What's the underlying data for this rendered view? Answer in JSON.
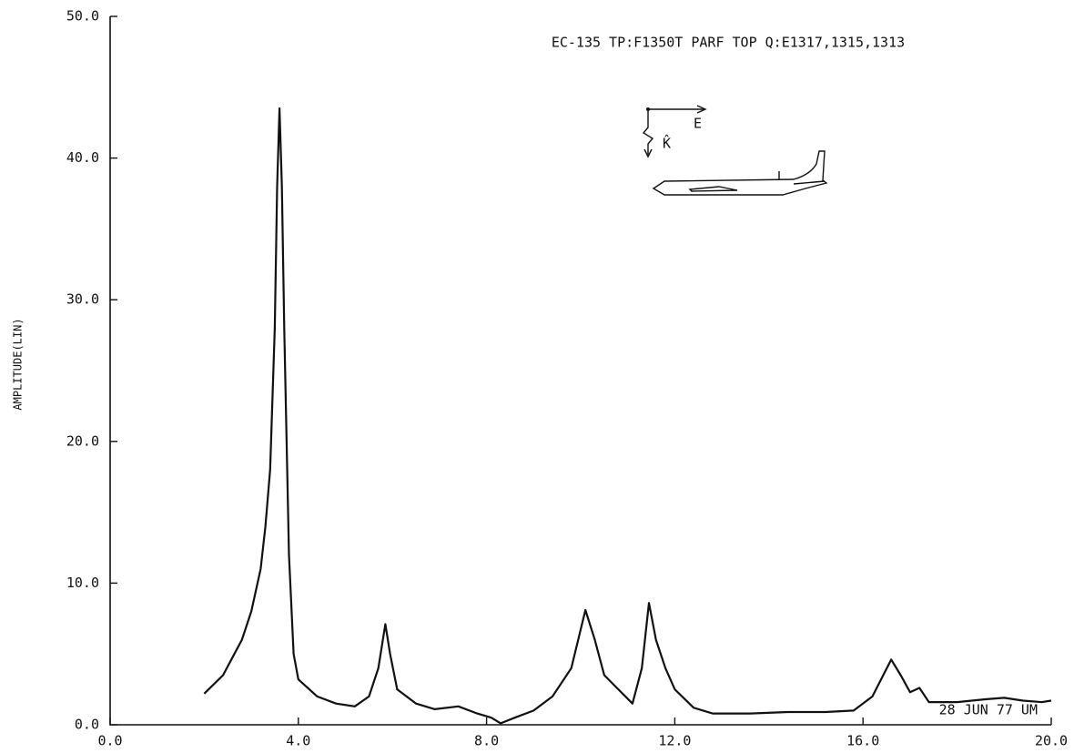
{
  "chart_data": {
    "type": "line",
    "title": "EC-135 TP:F1350T PARF TOP Q:E1317,1315,1313",
    "y_label": "AMPLITUDE(LIN)",
    "annotations": [
      "28 JUN 77 UM",
      "E",
      "K̂"
    ],
    "color": "#111111",
    "xlim": [
      0,
      20
    ],
    "ylim": [
      0,
      50
    ],
    "xticks": [
      {
        "value": 0,
        "label": "0.0"
      },
      {
        "value": 4,
        "label": "4.0"
      },
      {
        "value": 8,
        "label": "8.0"
      },
      {
        "value": 12,
        "label": "12.0"
      },
      {
        "value": 16,
        "label": "16.0"
      },
      {
        "value": 20,
        "label": "20.0"
      }
    ],
    "yticks": [
      {
        "value": 0,
        "label": "0.0"
      },
      {
        "value": 10,
        "label": "10.0"
      },
      {
        "value": 20,
        "label": "20.0"
      },
      {
        "value": 30,
        "label": "30.0"
      },
      {
        "value": 40,
        "label": "40.0"
      },
      {
        "value": 50,
        "label": "50.0"
      }
    ],
    "x": [
      2.0,
      2.4,
      2.8,
      3.0,
      3.2,
      3.3,
      3.4,
      3.5,
      3.55,
      3.6,
      3.65,
      3.7,
      3.8,
      3.9,
      4.0,
      4.4,
      4.8,
      5.2,
      5.5,
      5.7,
      5.85,
      5.95,
      6.1,
      6.5,
      6.9,
      7.4,
      7.8,
      8.1,
      8.3,
      8.6,
      9.0,
      9.4,
      9.8,
      10.1,
      10.3,
      10.5,
      10.8,
      11.1,
      11.3,
      11.45,
      11.6,
      11.8,
      12.0,
      12.4,
      12.8,
      13.6,
      14.4,
      15.2,
      15.8,
      16.2,
      16.6,
      16.8,
      17.0,
      17.2,
      17.4,
      18.0,
      18.6,
      19.0,
      19.4,
      19.8,
      20.0
    ],
    "values": [
      2.2,
      3.5,
      6,
      8,
      11,
      14,
      18,
      28,
      38,
      43.5,
      38,
      28,
      12,
      5,
      3.2,
      2,
      1.5,
      1.3,
      2,
      4,
      7.1,
      5,
      2.5,
      1.5,
      1.1,
      1.3,
      0.8,
      0.5,
      0.1,
      0.5,
      1,
      2,
      4,
      8.1,
      6,
      3.5,
      2.5,
      1.5,
      4,
      8.6,
      6,
      4,
      2.5,
      1.2,
      0.8,
      0.8,
      0.9,
      0.9,
      1,
      2,
      4.6,
      3.5,
      2.3,
      2.6,
      1.6,
      1.6,
      1.8,
      1.9,
      1.7,
      1.6,
      1.7
    ]
  }
}
